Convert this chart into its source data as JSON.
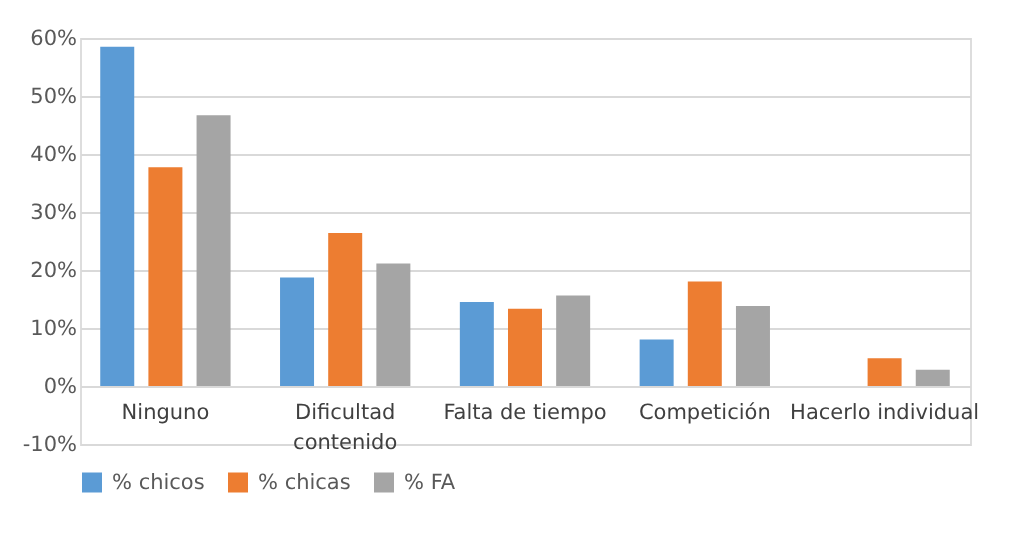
{
  "chart_data": {
    "type": "bar",
    "categories": [
      "Ninguno",
      "Dificultad\ncontenido",
      "Falta de tiempo",
      "Competición",
      "Hacerlo individual"
    ],
    "series": [
      {
        "name": "% chicos",
        "color": "#5b9bd5",
        "values": [
          58.5,
          18.7,
          14.5,
          8.0,
          0
        ]
      },
      {
        "name": "% chicas",
        "color": "#ed7d31",
        "values": [
          37.7,
          26.4,
          13.3,
          18.0,
          4.8
        ]
      },
      {
        "name": "% FA",
        "color": "#a5a5a5",
        "values": [
          46.7,
          21.1,
          15.6,
          13.8,
          2.8
        ]
      }
    ],
    "ylim": [
      -10,
      60
    ],
    "yticks": [
      {
        "value": -10,
        "label": "-10%"
      },
      {
        "value": 0,
        "label": "0%"
      },
      {
        "value": 10,
        "label": "10%"
      },
      {
        "value": 20,
        "label": "20%"
      },
      {
        "value": 30,
        "label": "30%"
      },
      {
        "value": 40,
        "label": "40%"
      },
      {
        "value": 50,
        "label": "50%"
      },
      {
        "value": 60,
        "label": "60%"
      }
    ],
    "grid": "y",
    "legend": "bottom"
  }
}
